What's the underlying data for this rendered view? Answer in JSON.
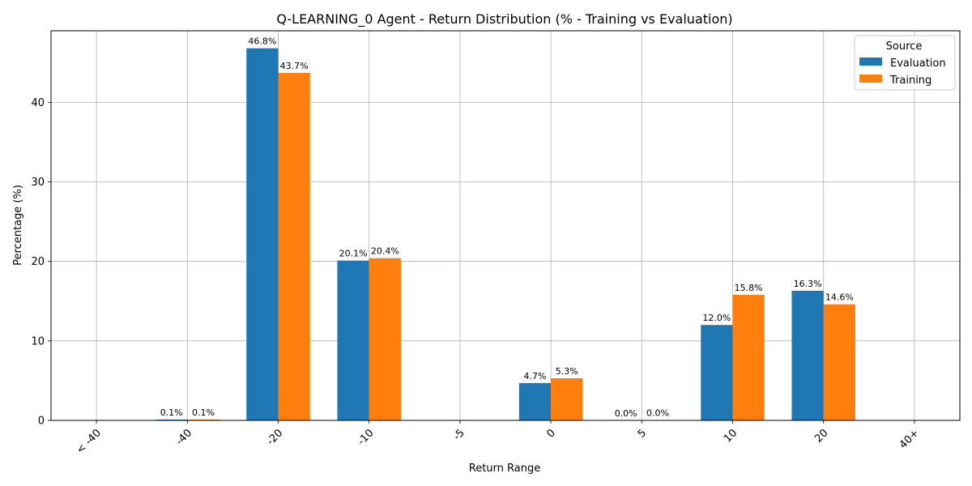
{
  "chart_data": {
    "type": "bar",
    "title": "Q-LEARNING_0 Agent - Return Distribution (% - Training vs Evaluation)",
    "xlabel": "Return Range",
    "ylabel": "Percentage (%)",
    "categories": [
      "< -40",
      "-40",
      "-20",
      "-10",
      "-5",
      "0",
      "5",
      "10",
      "20",
      "40+"
    ],
    "ylim": [
      0,
      49
    ],
    "yticks": [
      0,
      10,
      20,
      30,
      40
    ],
    "grid": true,
    "legend": {
      "title": "Source",
      "placement": "top-right"
    },
    "series": [
      {
        "name": "Evaluation",
        "color": "#1f77b4",
        "values": [
          0,
          0.1,
          46.8,
          20.1,
          0,
          4.7,
          0.0,
          12.0,
          16.3,
          0
        ],
        "labels": [
          "",
          "0.1%",
          "46.8%",
          "20.1%",
          "",
          "4.7%",
          "0.0%",
          "12.0%",
          "16.3%",
          ""
        ]
      },
      {
        "name": "Training",
        "color": "#ff7f0e",
        "values": [
          0,
          0.1,
          43.7,
          20.4,
          0,
          5.3,
          0.04,
          15.8,
          14.6,
          0
        ],
        "labels": [
          "",
          "0.1%",
          "43.7%",
          "20.4%",
          "",
          "5.3%",
          "0.0%",
          "15.8%",
          "14.6%",
          ""
        ]
      }
    ]
  }
}
